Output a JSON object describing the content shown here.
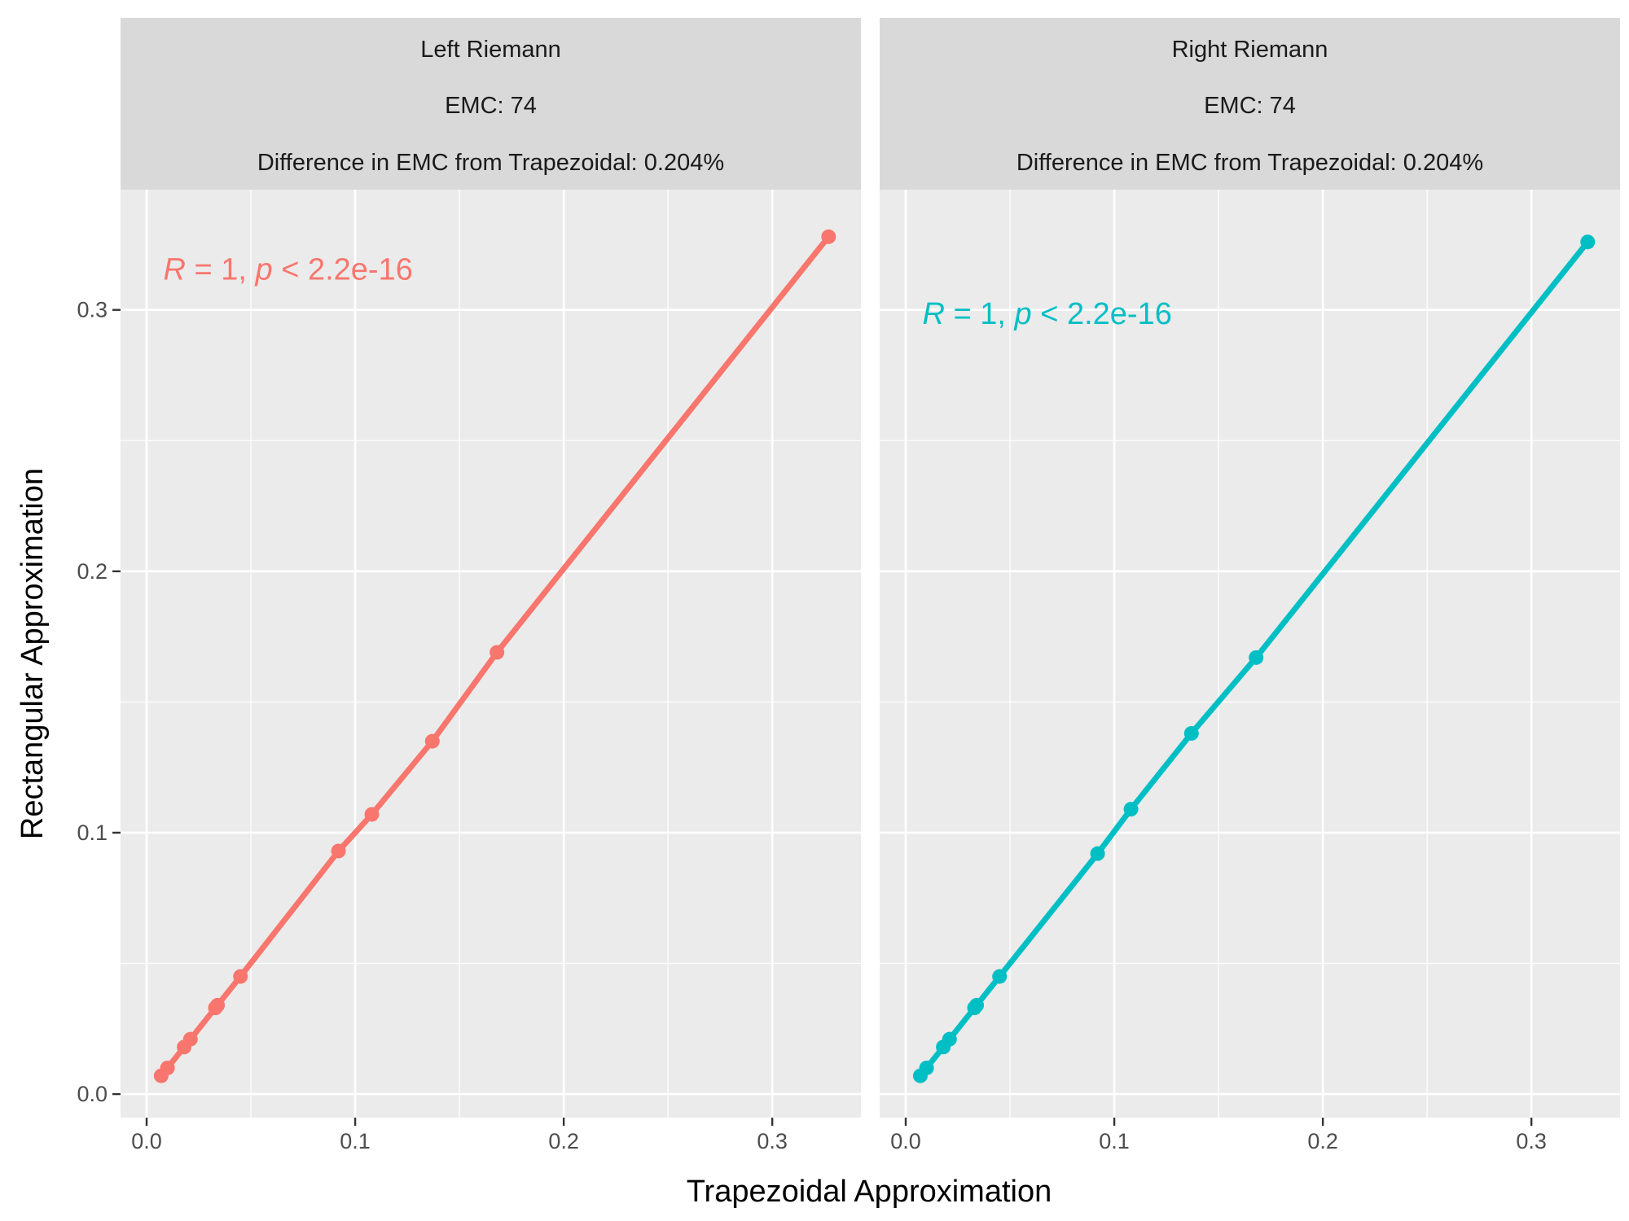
{
  "chart_data": {
    "type": "line",
    "xlabel": "Trapezoidal Approximation",
    "ylabel": "Rectangular Approximation",
    "xlim": [
      -0.0125,
      0.3425
    ],
    "ylim": [
      -0.009,
      0.346
    ],
    "x_ticks": [
      0.0,
      0.1,
      0.2,
      0.3
    ],
    "x_tick_labels": [
      "0.0",
      "0.1",
      "0.2",
      "0.3"
    ],
    "y_ticks": [
      0.0,
      0.1,
      0.2,
      0.3
    ],
    "y_tick_labels": [
      "0.0",
      "0.1",
      "0.2",
      "0.3"
    ],
    "grid": true,
    "legend": "none",
    "panels": [
      {
        "strip": [
          "Left Riemann",
          "EMC: 74",
          "Difference in EMC from Trapezoidal: 0.204%"
        ],
        "annotation": {
          "R": "R",
          "eq": " = 1, ",
          "p": "p",
          "rest": " < 2.2e-16",
          "x": 0.008,
          "y": 0.316
        },
        "color": "#F8766D",
        "x": [
          0.007,
          0.01,
          0.018,
          0.021,
          0.033,
          0.034,
          0.045,
          0.092,
          0.108,
          0.137,
          0.168,
          0.327
        ],
        "y": [
          0.007,
          0.01,
          0.018,
          0.021,
          0.033,
          0.034,
          0.045,
          0.093,
          0.107,
          0.135,
          0.169,
          0.328
        ]
      },
      {
        "strip": [
          "Right Riemann",
          "EMC: 74",
          "Difference in EMC from Trapezoidal: 0.204%"
        ],
        "annotation": {
          "R": "R",
          "eq": " = 1, ",
          "p": "p",
          "rest": " < 2.2e-16",
          "x": 0.008,
          "y": 0.299
        },
        "color": "#00BFC4",
        "x": [
          0.007,
          0.01,
          0.018,
          0.021,
          0.033,
          0.034,
          0.045,
          0.092,
          0.108,
          0.137,
          0.168,
          0.327
        ],
        "y": [
          0.007,
          0.01,
          0.018,
          0.021,
          0.033,
          0.034,
          0.045,
          0.092,
          0.109,
          0.138,
          0.167,
          0.326
        ]
      }
    ]
  }
}
